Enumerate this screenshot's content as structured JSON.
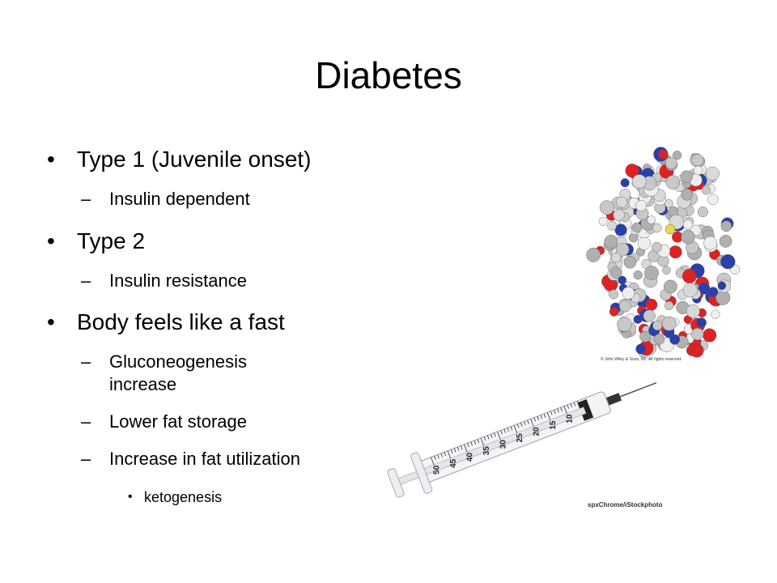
{
  "title": "Diabetes",
  "bullets": [
    {
      "text": "Type 1 (Juvenile onset)",
      "sub": [
        {
          "text": "Insulin dependent"
        }
      ]
    },
    {
      "text": "Type 2",
      "sub": [
        {
          "text": "Insulin resistance"
        }
      ]
    },
    {
      "text": "Body feels like a fast",
      "sub": [
        {
          "text": "Gluconeogenesis increase"
        },
        {
          "text": "Lower fat storage"
        },
        {
          "text": "Increase in fat utilization",
          "sub": [
            {
              "text": "ketogenesis"
            }
          ]
        }
      ]
    }
  ],
  "images": [
    {
      "caption": "© John Wiley & Sons, Inc. All rights reserved."
    },
    {
      "caption": "spxChrome/iStockphoto",
      "scale": [
        10,
        15,
        20,
        25,
        30,
        35,
        40,
        45,
        50
      ]
    }
  ]
}
